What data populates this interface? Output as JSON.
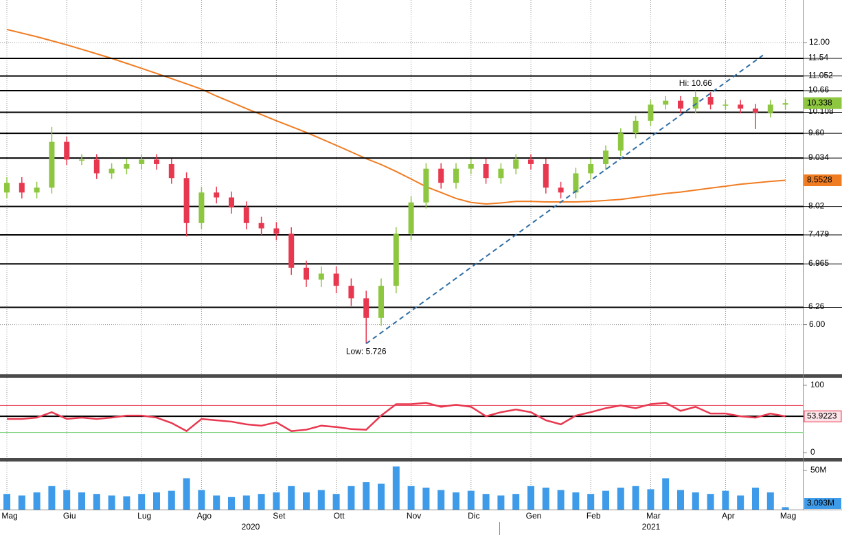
{
  "chart_data": [
    {
      "type": "candlestick",
      "log_scale": true,
      "grid": true,
      "ylim": [
        5.31,
        13.32
      ],
      "yticks": [
        {
          "value": 6,
          "label": "6.00"
        },
        {
          "value": 12,
          "label": "12.00"
        }
      ],
      "up_color": "#8dc63f",
      "down_color": "#e8384f",
      "open": [
        8.3,
        8.5,
        8.3,
        8.4,
        9.4,
        9.0,
        9.0,
        8.7,
        8.8,
        8.9,
        9.0,
        8.9,
        8.6,
        7.7,
        8.3,
        8.2,
        8.0,
        7.7,
        7.6,
        7.5,
        6.9,
        6.7,
        6.8,
        6.6,
        6.4,
        6.1,
        6.6,
        7.5,
        8.1,
        8.8,
        8.5,
        8.8,
        8.9,
        8.6,
        8.8,
        9.0,
        8.9,
        8.4,
        8.3,
        8.7,
        8.9,
        9.2,
        9.6,
        9.9,
        10.3,
        10.4,
        10.2,
        10.5,
        10.3,
        10.3,
        10.2,
        10.1,
        10.3
      ],
      "high": [
        8.62,
        8.62,
        8.52,
        9.75,
        9.52,
        9.12,
        9.12,
        8.92,
        9.02,
        9.12,
        9.12,
        9.02,
        8.72,
        8.42,
        8.42,
        8.32,
        8.12,
        7.82,
        7.72,
        7.62,
        7.02,
        6.92,
        6.92,
        6.72,
        6.52,
        6.72,
        7.62,
        8.22,
        8.92,
        8.92,
        8.92,
        9.02,
        9.02,
        8.92,
        9.12,
        9.12,
        9.02,
        8.52,
        8.82,
        9.02,
        9.32,
        9.72,
        10.02,
        10.42,
        10.52,
        10.52,
        10.66,
        10.62,
        10.42,
        10.42,
        10.32,
        10.42,
        10.45
      ],
      "low": [
        8.18,
        8.18,
        8.18,
        8.28,
        8.88,
        8.88,
        8.58,
        8.58,
        8.68,
        8.78,
        8.78,
        8.48,
        7.45,
        7.58,
        8.08,
        7.88,
        7.58,
        7.48,
        7.38,
        6.78,
        6.58,
        6.58,
        6.48,
        6.28,
        5.726,
        5.98,
        6.48,
        7.38,
        7.98,
        8.38,
        8.38,
        8.68,
        8.48,
        8.48,
        8.68,
        8.78,
        8.28,
        8.18,
        8.18,
        8.58,
        8.78,
        9.08,
        9.48,
        9.78,
        10.18,
        10.08,
        10.08,
        10.18,
        10.18,
        10.08,
        9.7,
        9.98,
        10.18
      ],
      "close": [
        8.5,
        8.3,
        8.4,
        9.4,
        9.0,
        9.0,
        8.7,
        8.8,
        8.9,
        9.0,
        8.9,
        8.6,
        7.7,
        8.3,
        8.2,
        8.0,
        7.7,
        7.6,
        7.5,
        6.9,
        6.7,
        6.8,
        6.6,
        6.4,
        6.1,
        6.6,
        7.5,
        8.1,
        8.8,
        8.5,
        8.8,
        8.9,
        8.6,
        8.8,
        9.0,
        8.9,
        8.4,
        8.3,
        8.7,
        8.9,
        9.2,
        9.6,
        9.9,
        10.3,
        10.4,
        10.2,
        10.5,
        10.3,
        10.3,
        10.2,
        10.1,
        10.3,
        10.338
      ],
      "ma": {
        "color": "#f07c22",
        "values": [
          12.39,
          12.28,
          12.17,
          12.05,
          11.93,
          11.8,
          11.67,
          11.54,
          11.4,
          11.26,
          11.12,
          10.98,
          10.84,
          10.7,
          10.52,
          10.36,
          10.2,
          10.05,
          9.9,
          9.76,
          9.62,
          9.47,
          9.32,
          9.17,
          9.02,
          8.89,
          8.74,
          8.58,
          8.42,
          8.3,
          8.18,
          8.1,
          8.07,
          8.09,
          8.12,
          8.12,
          8.11,
          8.11,
          8.11,
          8.12,
          8.14,
          8.16,
          8.2,
          8.24,
          8.28,
          8.31,
          8.35,
          8.39,
          8.43,
          8.47,
          8.5,
          8.53,
          8.5528
        ]
      },
      "levels": [
        11.54,
        11.052,
        10.66,
        10.108,
        {
          "value": 9.6,
          "label": "9.60"
        },
        9.034,
        8.02,
        7.479,
        6.965,
        6.26
      ],
      "trendline": {
        "color": "#2e6da4",
        "x": [
          24,
          50.5
        ],
        "y": [
          5.726,
          11.63
        ]
      },
      "annotations": [
        {
          "text": "Hi: 10.66",
          "x": 46,
          "value": 10.66
        },
        {
          "text": "Low: 5.726",
          "x": 24,
          "value": 5.726
        }
      ]
    },
    {
      "type": "line",
      "color": "#e8384f",
      "ylim": [
        -6.1,
        109.2
      ],
      "yticks": [
        0,
        100
      ],
      "levels": [
        {
          "value": 70,
          "color": "#e8384f"
        },
        {
          "value": 30,
          "color": "#5cc85c"
        }
      ],
      "values": [
        50,
        50,
        52,
        60,
        50,
        52,
        50,
        52,
        55,
        55,
        52,
        44,
        32,
        50,
        48,
        46,
        42,
        40,
        45,
        32,
        34,
        40,
        38,
        35,
        34,
        55,
        72,
        72,
        74,
        68,
        71,
        68,
        54,
        60,
        64,
        60,
        48,
        42,
        55,
        60,
        66,
        70,
        66,
        72,
        74,
        62,
        68,
        58,
        58,
        54,
        52,
        58,
        53.9223
      ]
    },
    {
      "type": "bar",
      "color": "#3d9be9",
      "ylim": [
        0,
        58770000
      ],
      "yticks": [
        {
          "value": 50000000,
          "label": "50M"
        }
      ],
      "categories": [
        "Mag",
        null,
        null,
        null,
        "Giu",
        null,
        null,
        null,
        null,
        "Lug",
        null,
        null,
        null,
        "Ago",
        null,
        null,
        null,
        null,
        "Set",
        null,
        null,
        null,
        "Ott",
        null,
        null,
        null,
        null,
        "Nov",
        null,
        null,
        null,
        "Dic",
        null,
        null,
        null,
        "Gen",
        null,
        null,
        null,
        "Feb",
        null,
        null,
        null,
        "Mar",
        null,
        null,
        null,
        null,
        "Apr",
        null,
        null,
        null,
        "Mag"
      ],
      "values": [
        20000000,
        18000000,
        22000000,
        30000000,
        25000000,
        22000000,
        20000000,
        18000000,
        17000000,
        20000000,
        22000000,
        24000000,
        40000000,
        25000000,
        18000000,
        16000000,
        18000000,
        20000000,
        22000000,
        30000000,
        22000000,
        25000000,
        20000000,
        30000000,
        35000000,
        33000000,
        55000000,
        30000000,
        28000000,
        25000000,
        22000000,
        24000000,
        20000000,
        18000000,
        20000000,
        30000000,
        28000000,
        25000000,
        22000000,
        20000000,
        24000000,
        28000000,
        30000000,
        26000000,
        40000000,
        25000000,
        22000000,
        20000000,
        24000000,
        18000000,
        28000000,
        22000000,
        3093000
      ],
      "last_value_label": "3.093M",
      "year_labels": [
        "2020",
        "2021"
      ]
    }
  ]
}
